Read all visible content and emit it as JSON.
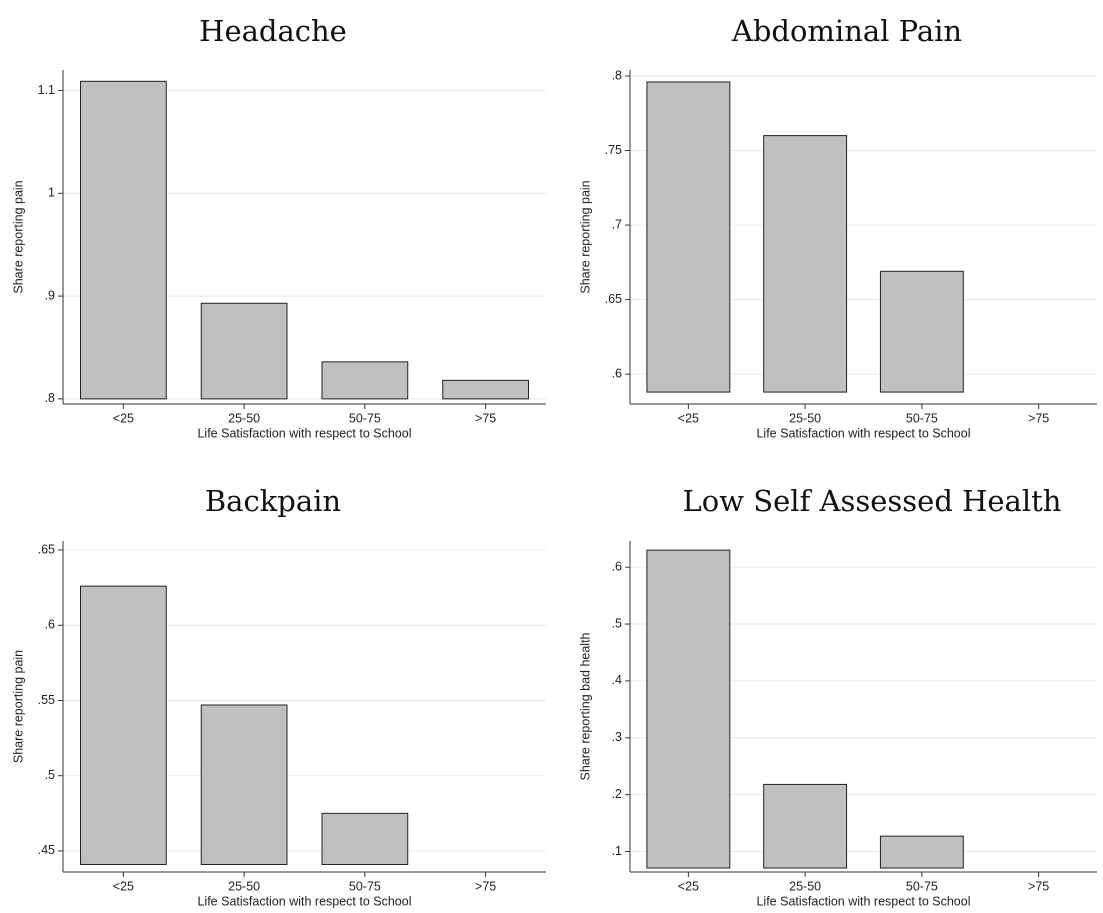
{
  "chart_data": [
    {
      "type": "bar",
      "title": "Headache",
      "xlabel": "Life Satisfaction with respect to School",
      "ylabel": "Share reporting pain",
      "categories": [
        "<25",
        "25-50",
        "50-75",
        ">75"
      ],
      "values": [
        1.109,
        0.893,
        0.836,
        0.818
      ],
      "base": 0.8,
      "ylim": [
        0.795,
        1.12
      ],
      "yticks": [
        0.8,
        0.9,
        1.0,
        1.1
      ],
      "ytick_labels": [
        ".8",
        ".9",
        "1",
        "1.1"
      ],
      "bar_color": "#c0c0c0",
      "grid": true
    },
    {
      "type": "bar",
      "title": "Abdominal Pain",
      "xlabel": "Life Satisfaction with respect to School",
      "ylabel": "Share reporting pain",
      "categories": [
        "<25",
        "25-50",
        "50-75",
        ">75"
      ],
      "values": [
        0.796,
        0.76,
        0.669,
        null
      ],
      "base": 0.588,
      "ylim": [
        0.58,
        0.804
      ],
      "yticks": [
        0.6,
        0.65,
        0.7,
        0.75,
        0.8
      ],
      "ytick_labels": [
        ".6",
        ".65",
        ".7",
        ".75",
        ".8"
      ],
      "bar_color": "#c0c0c0",
      "grid": true
    },
    {
      "type": "bar",
      "title": "Backpain",
      "xlabel": "Life Satisfaction with respect to School",
      "ylabel": "Share reporting pain",
      "categories": [
        "<25",
        "25-50",
        "50-75",
        ">75"
      ],
      "values": [
        0.626,
        0.547,
        0.475,
        null
      ],
      "base": 0.441,
      "ylim": [
        0.436,
        0.656
      ],
      "yticks": [
        0.45,
        0.5,
        0.55,
        0.6,
        0.65
      ],
      "ytick_labels": [
        ".45",
        ".5",
        ".55",
        ".6",
        ".65"
      ],
      "bar_color": "#c0c0c0",
      "grid": true
    },
    {
      "type": "bar",
      "title": "Low Self Assessed Health",
      "xlabel": "Life Satisfaction with respect to School",
      "ylabel": "Share reporting bad health",
      "categories": [
        "<25",
        "25-50",
        "50-75",
        ">75"
      ],
      "values": [
        0.63,
        0.218,
        0.127,
        null
      ],
      "base": 0.071,
      "ylim": [
        0.064,
        0.646
      ],
      "yticks": [
        0.1,
        0.2,
        0.3,
        0.4,
        0.5,
        0.6
      ],
      "ytick_labels": [
        ".1",
        ".2",
        ".3",
        ".4",
        ".5",
        ".6"
      ],
      "bar_color": "#c0c0c0",
      "grid": true
    }
  ]
}
